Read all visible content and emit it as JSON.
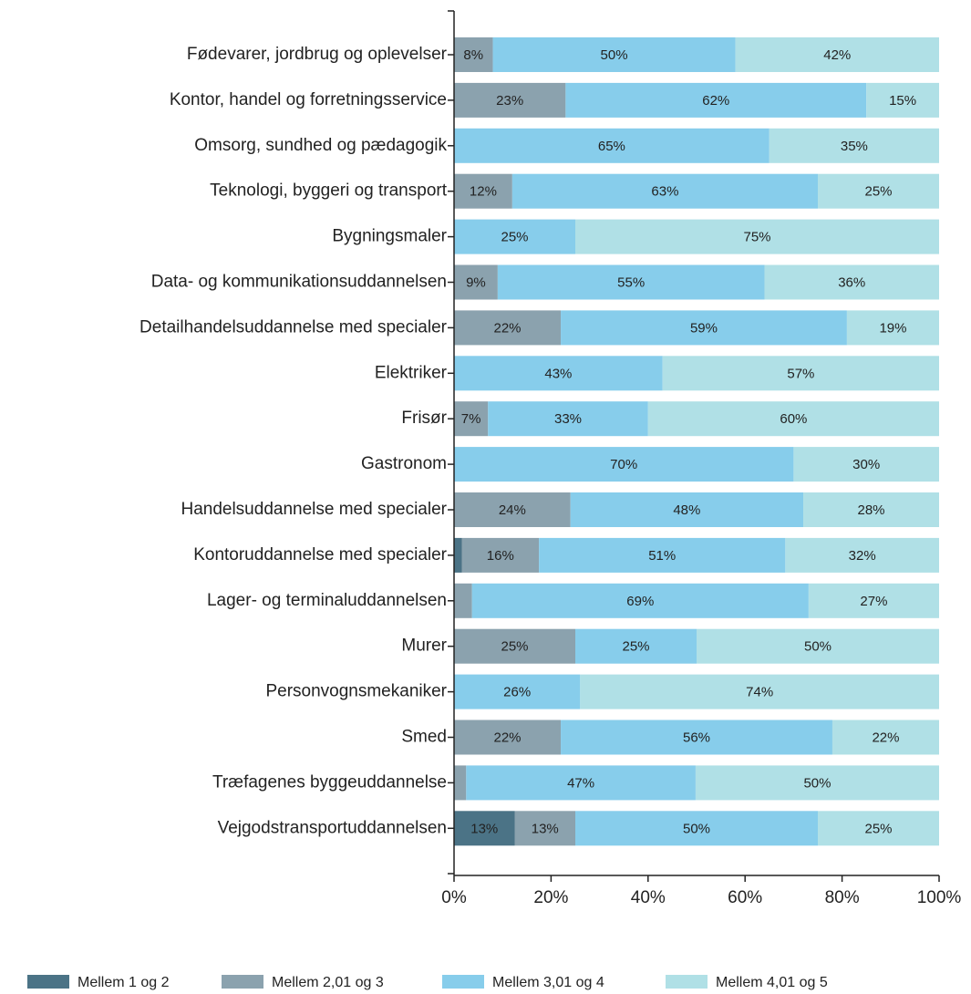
{
  "chart_data": {
    "type": "stacked-barh",
    "categories": [
      "Fødevarer, jordbrug og oplevelser",
      "Kontor, handel og forretningsservice",
      "Omsorg, sundhed og pædagogik",
      "Teknologi, byggeri og transport",
      "Bygningsmaler",
      "Data- og kommunikationsuddannelsen",
      "Detailhandelsuddannelse med specialer",
      "Elektriker",
      "Frisør",
      "Gastronom",
      "Handelsuddannelse med specialer",
      "Kontoruddannelse med specialer",
      "Lager- og terminaluddannelsen",
      "Murer",
      "Personvognsmekaniker",
      "Smed",
      "Træfagenes byggeuddannelse",
      "Vejgodstransportuddannelsen"
    ],
    "series": [
      {
        "name": "Mellem 1 og 2",
        "color": "#4b7386",
        "values": [
          0,
          0,
          0,
          0,
          0,
          0,
          0,
          0,
          0,
          0,
          0,
          1.6,
          0,
          0,
          0,
          0,
          0,
          12.5
        ],
        "value_labels": [
          null,
          null,
          null,
          null,
          null,
          null,
          null,
          null,
          null,
          null,
          null,
          null,
          null,
          null,
          null,
          null,
          null,
          "13%"
        ]
      },
      {
        "name": "Mellem 2,01 og 3",
        "color": "#8ba2ae",
        "values": [
          8,
          23,
          0,
          12,
          0,
          9,
          22,
          0,
          7,
          0,
          24,
          15.9,
          3.7,
          25,
          0,
          22,
          2.5,
          12.5
        ],
        "value_labels": [
          "8%",
          "23%",
          null,
          "12%",
          null,
          "9%",
          "22%",
          null,
          "7%",
          null,
          "24%",
          "16%",
          null,
          "25%",
          null,
          "22%",
          null,
          "13%"
        ]
      },
      {
        "name": "Mellem 3,01 og 4",
        "color": "#87cdeb",
        "values": [
          50,
          62,
          65,
          63,
          25,
          55,
          59,
          43,
          33,
          70,
          48,
          50.8,
          69.4,
          25,
          26,
          56,
          47.3,
          50
        ],
        "value_labels": [
          "50%",
          "62%",
          "65%",
          "63%",
          "25%",
          "55%",
          "59%",
          "43%",
          "33%",
          "70%",
          "48%",
          "51%",
          "69%",
          "25%",
          "26%",
          "56%",
          "47%",
          "50%"
        ]
      },
      {
        "name": "Mellem 4,01 og 5",
        "color": "#b0e0e6",
        "values": [
          42,
          15,
          35,
          25,
          75,
          36,
          19,
          57,
          60,
          30,
          28,
          31.7,
          26.9,
          50,
          74,
          22,
          50.2,
          25
        ],
        "value_labels": [
          "42%",
          "15%",
          "35%",
          "25%",
          "75%",
          "36%",
          "19%",
          "57%",
          "60%",
          "30%",
          "28%",
          "32%",
          "27%",
          "50%",
          "74%",
          "22%",
          "50%",
          "25%"
        ]
      }
    ],
    "xlim": [
      0,
      100
    ],
    "xticks": [
      {
        "value": 0,
        "label": "0%"
      },
      {
        "value": 20,
        "label": "20%"
      },
      {
        "value": 40,
        "label": "40%"
      },
      {
        "value": 60,
        "label": "60%"
      },
      {
        "value": 80,
        "label": "80%"
      },
      {
        "value": 100,
        "label": "100%"
      }
    ]
  }
}
